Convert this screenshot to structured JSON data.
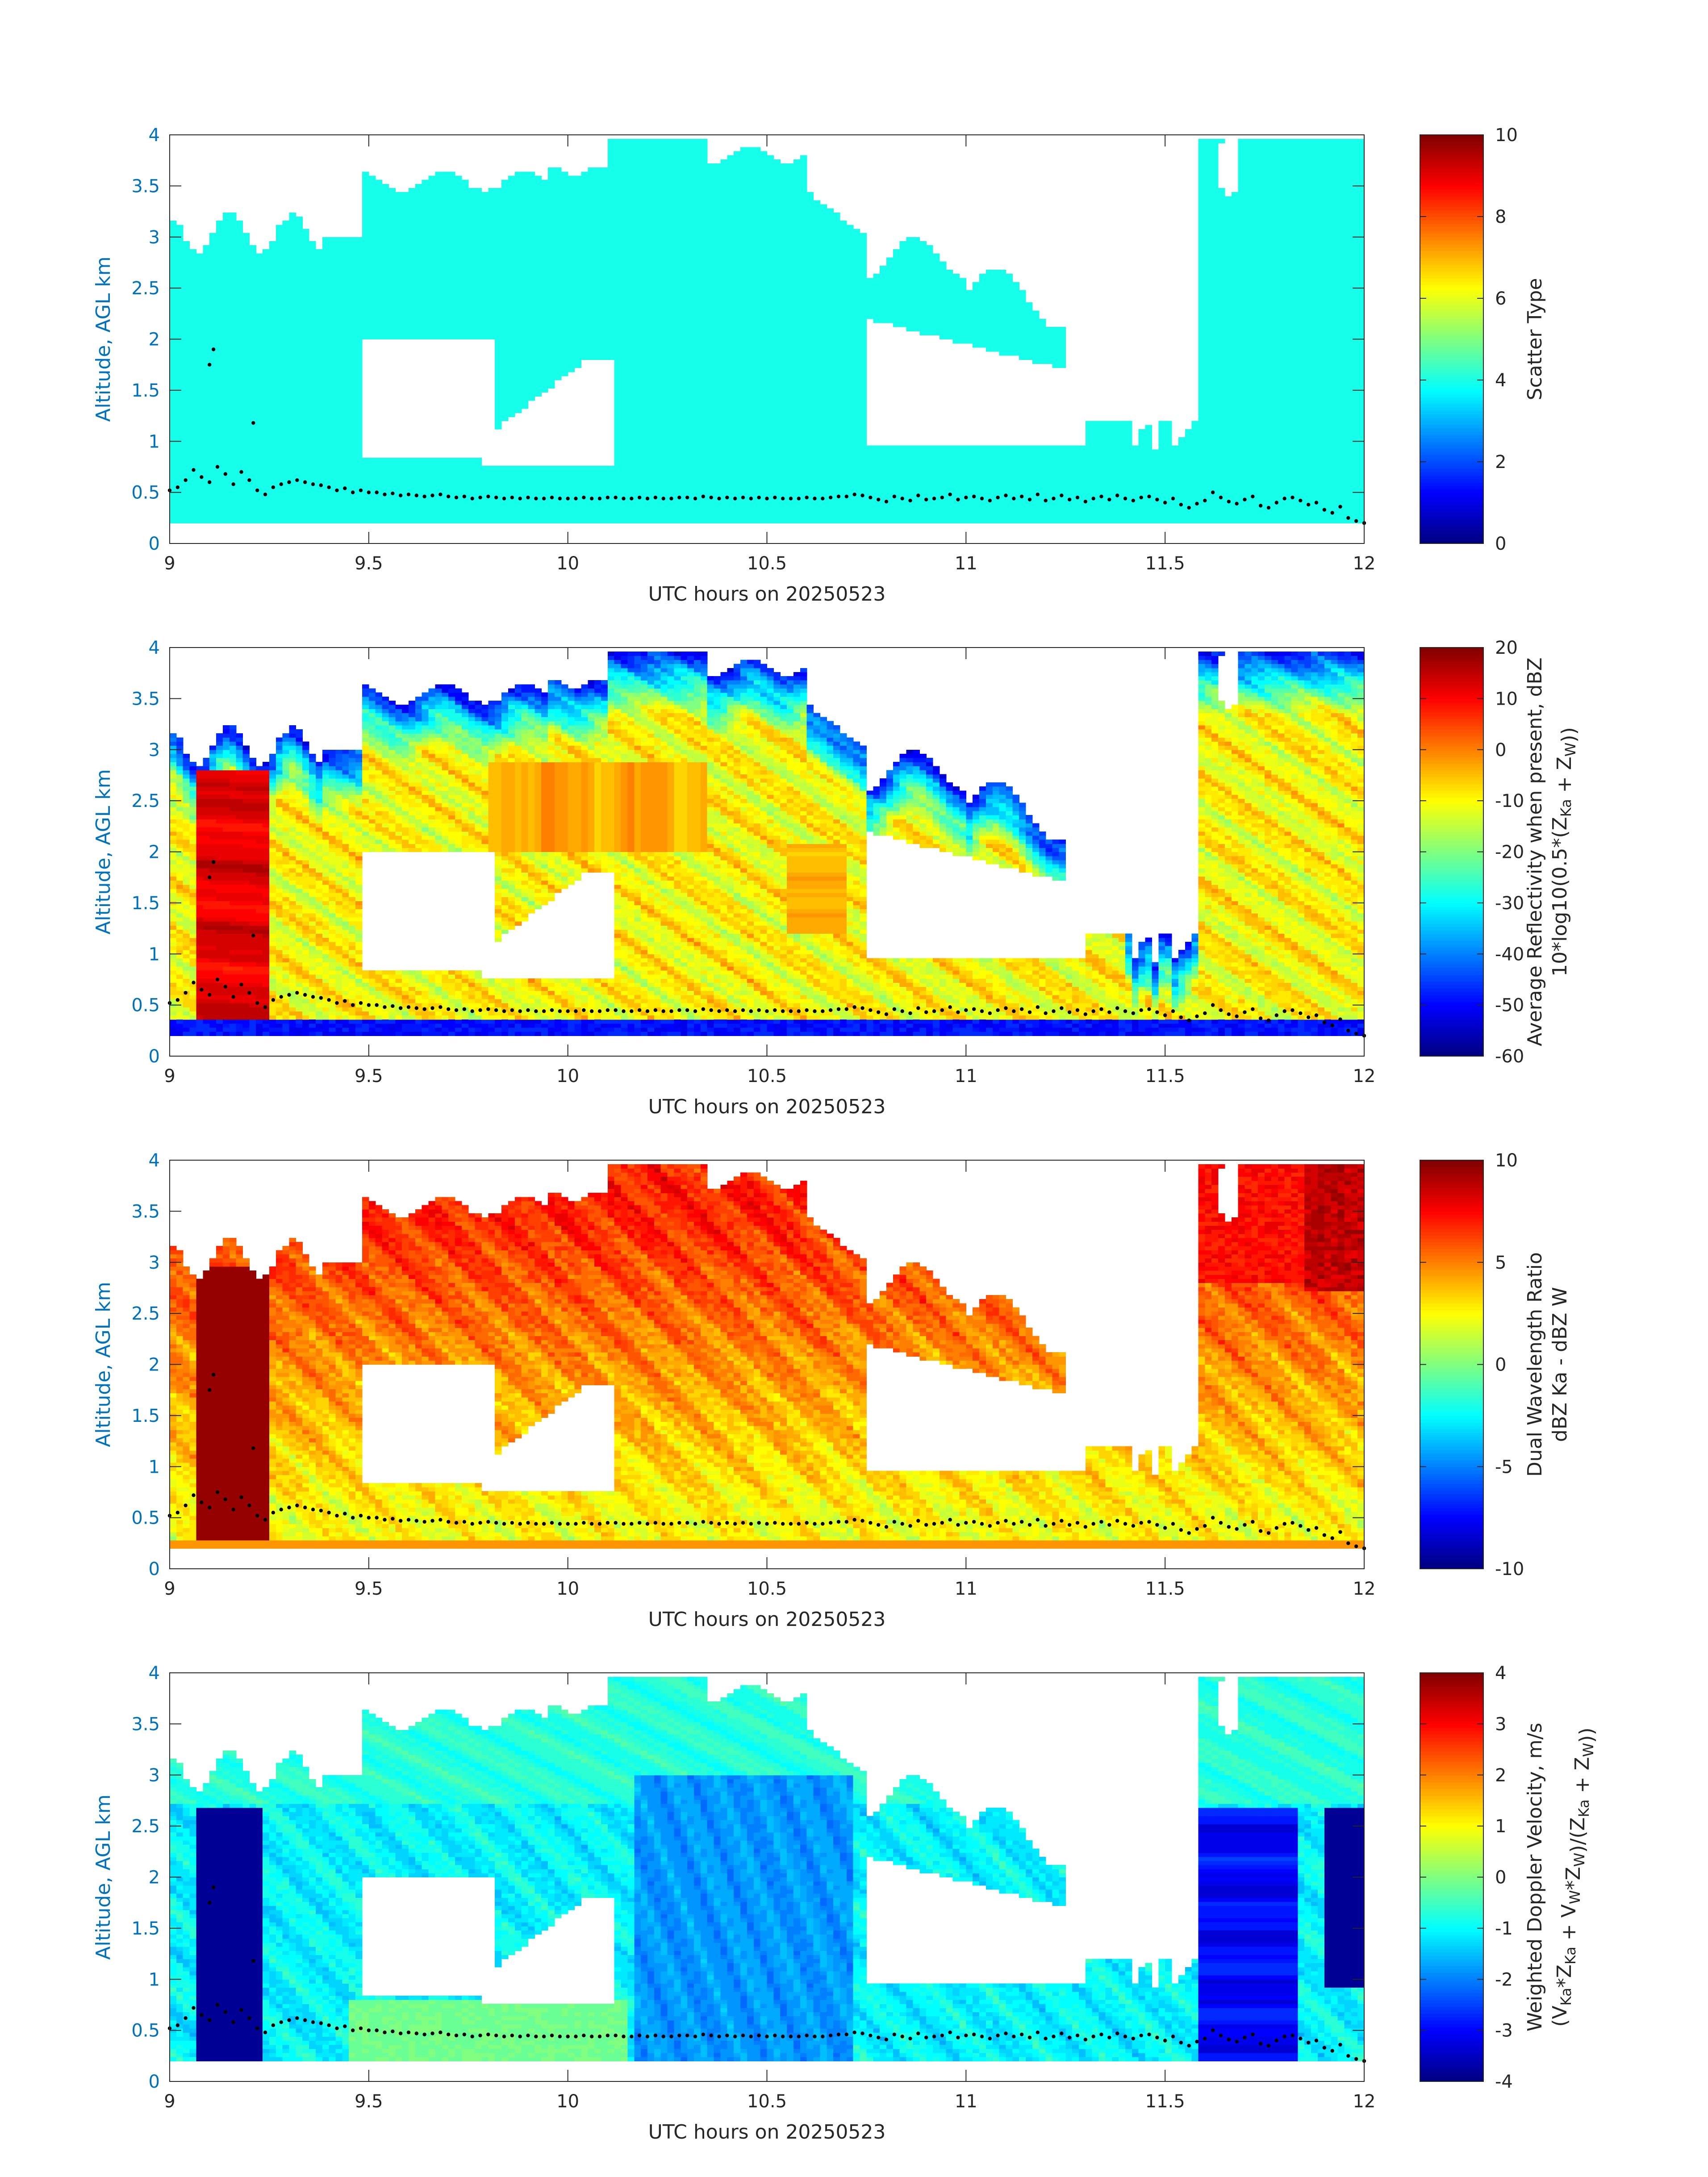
{
  "figure": {
    "background": "#ffffff"
  },
  "chart_data": [
    {
      "type": "heatmap",
      "id": "scatter-type",
      "xlabel": "UTC hours on 20250523",
      "ylabel": "Altitude, AGL km",
      "xlim": [
        9,
        12
      ],
      "ylim": [
        0,
        4
      ],
      "xticks": [
        "9",
        "9.5",
        "10",
        "10.5",
        "11",
        "11.5",
        "12"
      ],
      "yticks": [
        "0",
        "0.5",
        "1",
        "1.5",
        "2",
        "2.5",
        "3",
        "3.5",
        "4"
      ],
      "colorbar": {
        "label_lines": [
          "Scatter Type"
        ],
        "range": [
          0,
          10
        ],
        "ticks": [
          "0",
          "2",
          "4",
          "6",
          "8",
          "10"
        ],
        "colormap": "jet"
      },
      "field": "scatter",
      "dominant_value": 3.9,
      "dominant_color": "#22f2d4"
    },
    {
      "type": "heatmap",
      "id": "reflectivity",
      "xlabel": "UTC hours on 20250523",
      "ylabel": "Altitude, AGL km",
      "xlim": [
        9,
        12
      ],
      "ylim": [
        0,
        4
      ],
      "xticks": [
        "9",
        "9.5",
        "10",
        "10.5",
        "11",
        "11.5",
        "12"
      ],
      "yticks": [
        "0",
        "0.5",
        "1",
        "1.5",
        "2",
        "2.5",
        "3",
        "3.5",
        "4"
      ],
      "colorbar": {
        "label_lines": [
          "Average Reflectivity when present, dBZ",
          "10*log10(0.5*(Z_Ka + Z_W))"
        ],
        "range": [
          -60,
          20
        ],
        "ticks": [
          "-60",
          "-50",
          "-40",
          "-30",
          "-20",
          "-10",
          "0",
          "10",
          "20"
        ],
        "colormap": "jet"
      },
      "field": "reflectivity"
    },
    {
      "type": "heatmap",
      "id": "dual-wavelength-ratio",
      "xlabel": "UTC hours on 20250523",
      "ylabel": "Altitude, AGL km",
      "xlim": [
        9,
        12
      ],
      "ylim": [
        0,
        4
      ],
      "xticks": [
        "9",
        "9.5",
        "10",
        "10.5",
        "11",
        "11.5",
        "12"
      ],
      "yticks": [
        "0",
        "0.5",
        "1",
        "1.5",
        "2",
        "2.5",
        "3",
        "3.5",
        "4"
      ],
      "colorbar": {
        "label_lines": [
          "Dual Wavelength Ratio",
          "dBZ Ka - dBZ W"
        ],
        "range": [
          -10,
          10
        ],
        "ticks": [
          "-10",
          "-5",
          "0",
          "5",
          "10"
        ],
        "colormap": "jet"
      },
      "field": "dwr"
    },
    {
      "type": "heatmap",
      "id": "doppler-velocity",
      "xlabel": "UTC hours on 20250523",
      "ylabel": "Altitude, AGL km",
      "xlim": [
        9,
        12
      ],
      "ylim": [
        0,
        4
      ],
      "xticks": [
        "9",
        "9.5",
        "10",
        "10.5",
        "11",
        "11.5",
        "12"
      ],
      "yticks": [
        "0",
        "0.5",
        "1",
        "1.5",
        "2",
        "2.5",
        "3",
        "3.5",
        "4"
      ],
      "colorbar": {
        "label_lines": [
          "Weighted Doppler Velocity, m/s",
          "(V_Ka*Z_Ka + V_W*Z_W)/(Z_Ka + Z_W))"
        ],
        "range": [
          -4,
          4
        ],
        "ticks": [
          "-4",
          "-3",
          "-2",
          "-1",
          "0",
          "1",
          "2",
          "3",
          "4"
        ],
        "colormap": "jet"
      },
      "field": "velocity"
    }
  ],
  "cloud_base_dots": {
    "x": [
      9.0,
      9.02,
      9.04,
      9.06,
      9.08,
      9.1,
      9.12,
      9.14,
      9.16,
      9.18,
      9.2,
      9.22,
      9.24,
      9.26,
      9.28,
      9.3,
      9.32,
      9.34,
      9.36,
      9.38,
      9.4,
      9.42,
      9.44,
      9.46,
      9.48,
      9.5,
      9.52,
      9.54,
      9.56,
      9.58,
      9.6,
      9.62,
      9.64,
      9.66,
      9.68,
      9.7,
      9.72,
      9.74,
      9.76,
      9.78,
      9.8,
      9.82,
      9.84,
      9.86,
      9.88,
      9.9,
      9.92,
      9.94,
      9.96,
      9.98,
      10.0,
      10.02,
      10.04,
      10.06,
      10.08,
      10.1,
      10.12,
      10.14,
      10.16,
      10.18,
      10.2,
      10.22,
      10.24,
      10.26,
      10.28,
      10.3,
      10.32,
      10.34,
      10.36,
      10.38,
      10.4,
      10.42,
      10.44,
      10.46,
      10.48,
      10.5,
      10.52,
      10.54,
      10.56,
      10.58,
      10.6,
      10.62,
      10.64,
      10.66,
      10.68,
      10.7,
      10.72,
      10.74,
      10.76,
      10.78,
      10.8,
      10.82,
      10.84,
      10.86,
      10.88,
      10.9,
      10.92,
      10.94,
      10.96,
      10.98,
      11.0,
      11.02,
      11.04,
      11.06,
      11.08,
      11.1,
      11.12,
      11.14,
      11.16,
      11.18,
      11.2,
      11.22,
      11.24,
      11.26,
      11.28,
      11.3,
      11.32,
      11.34,
      11.36,
      11.38,
      11.4,
      11.42,
      11.44,
      11.46,
      11.48,
      11.5,
      11.52,
      11.54,
      11.56,
      11.58,
      11.6,
      11.62,
      11.64,
      11.66,
      11.68,
      11.7,
      11.72,
      11.74,
      11.76,
      11.78,
      11.8,
      11.82,
      11.84,
      11.86,
      11.88,
      11.9,
      11.92,
      11.94,
      11.96,
      11.98,
      12.0
    ],
    "y": [
      0.52,
      0.55,
      0.62,
      0.72,
      0.65,
      0.6,
      0.75,
      0.68,
      0.58,
      0.7,
      0.62,
      0.52,
      0.48,
      0.55,
      0.58,
      0.6,
      0.62,
      0.6,
      0.58,
      0.57,
      0.55,
      0.52,
      0.54,
      0.5,
      0.52,
      0.5,
      0.5,
      0.48,
      0.49,
      0.47,
      0.48,
      0.47,
      0.46,
      0.47,
      0.48,
      0.46,
      0.45,
      0.46,
      0.44,
      0.45,
      0.46,
      0.45,
      0.44,
      0.45,
      0.44,
      0.45,
      0.44,
      0.44,
      0.45,
      0.44,
      0.44,
      0.44,
      0.45,
      0.44,
      0.44,
      0.45,
      0.45,
      0.44,
      0.44,
      0.45,
      0.44,
      0.45,
      0.44,
      0.44,
      0.45,
      0.45,
      0.44,
      0.46,
      0.45,
      0.44,
      0.45,
      0.44,
      0.45,
      0.44,
      0.45,
      0.44,
      0.45,
      0.44,
      0.44,
      0.44,
      0.45,
      0.44,
      0.44,
      0.45,
      0.46,
      0.46,
      0.48,
      0.47,
      0.45,
      0.43,
      0.41,
      0.46,
      0.44,
      0.42,
      0.47,
      0.43,
      0.44,
      0.45,
      0.48,
      0.43,
      0.45,
      0.46,
      0.44,
      0.42,
      0.45,
      0.47,
      0.44,
      0.46,
      0.43,
      0.48,
      0.42,
      0.44,
      0.47,
      0.43,
      0.45,
      0.41,
      0.44,
      0.46,
      0.43,
      0.47,
      0.44,
      0.42,
      0.45,
      0.46,
      0.43,
      0.4,
      0.44,
      0.38,
      0.35,
      0.39,
      0.42,
      0.5,
      0.45,
      0.41,
      0.39,
      0.43,
      0.46,
      0.37,
      0.35,
      0.4,
      0.44,
      0.45,
      0.42,
      0.38,
      0.4,
      0.33,
      0.3,
      0.36,
      0.25,
      0.22,
      0.2
    ],
    "color": "#000000"
  },
  "isolated_points": [
    {
      "x": 9.1,
      "y": 1.75
    },
    {
      "x": 9.11,
      "y": 1.9
    },
    {
      "x": 9.21,
      "y": 1.18
    }
  ]
}
